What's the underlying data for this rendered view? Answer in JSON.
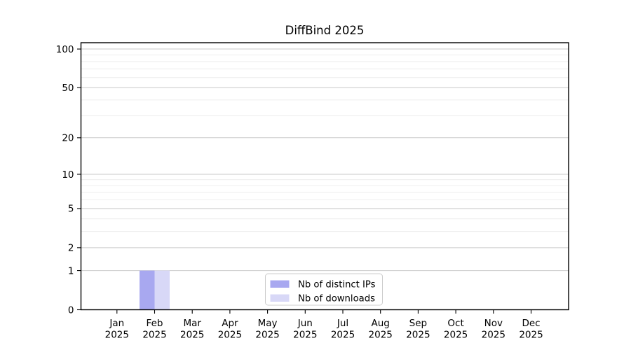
{
  "chart_data": {
    "type": "bar",
    "title": "DiffBind 2025",
    "categories": [
      "Jan",
      "Feb",
      "Mar",
      "Apr",
      "May",
      "Jun",
      "Jul",
      "Aug",
      "Sep",
      "Oct",
      "Nov",
      "Dec"
    ],
    "x_tick_labels_line2": [
      "2025",
      "2025",
      "2025",
      "2025",
      "2025",
      "2025",
      "2025",
      "2025",
      "2025",
      "2025",
      "2025",
      "2025"
    ],
    "series": [
      {
        "name": "Nb of distinct IPs",
        "color": "#a8a8f0",
        "values": [
          0,
          1,
          0,
          0,
          0,
          0,
          0,
          0,
          0,
          0,
          0,
          0
        ]
      },
      {
        "name": "Nb of downloads",
        "color": "#d8d8f7",
        "values": [
          0,
          1,
          0,
          0,
          0,
          0,
          0,
          0,
          0,
          0,
          0,
          0
        ]
      }
    ],
    "xlabel": "",
    "ylabel": "",
    "yscale": "log1p",
    "ylim": [
      0,
      112
    ],
    "ytick_values": [
      0,
      1,
      2,
      5,
      10,
      20,
      50,
      100
    ],
    "minor_gridline_values": [
      3,
      4,
      6,
      7,
      8,
      9,
      30,
      40,
      60,
      70,
      80,
      90
    ],
    "grid": "horizontal",
    "legend": {
      "position": "lower center",
      "entries": [
        "Nb of distinct IPs",
        "Nb of downloads"
      ]
    },
    "colors": {
      "background": "#ffffff",
      "axis": "#000000",
      "major_grid": "#c9c9c9",
      "minor_grid": "#ececec",
      "legend_border": "#cccccc",
      "legend_background": "#ffffff"
    }
  }
}
